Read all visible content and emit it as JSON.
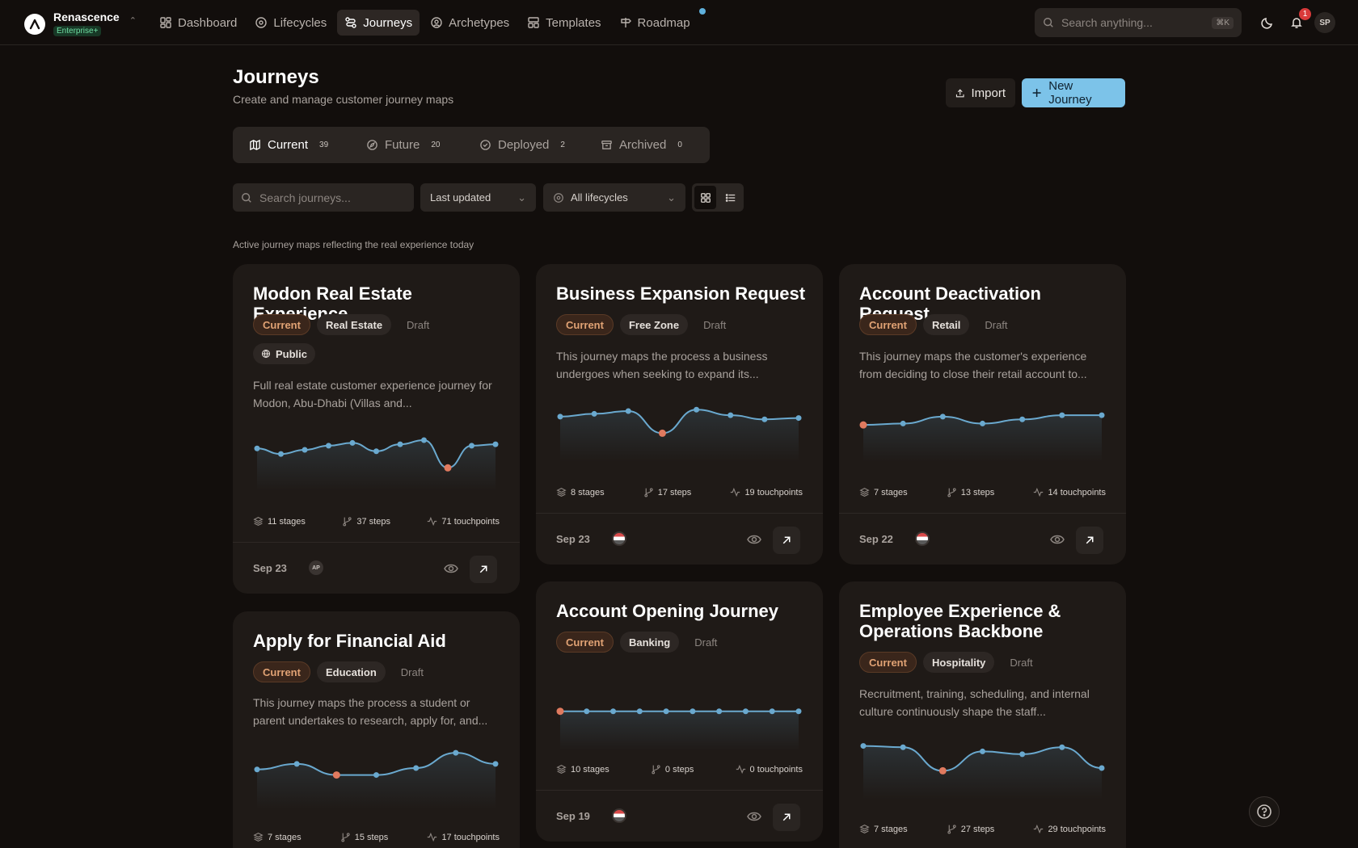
{
  "brand": {
    "name": "Renascence",
    "plan": "Enterprise+"
  },
  "nav": [
    {
      "label": "Dashboard",
      "icon": "dashboard-icon"
    },
    {
      "label": "Lifecycles",
      "icon": "lifecycle-icon"
    },
    {
      "label": "Journeys",
      "icon": "journey-icon",
      "active": true
    },
    {
      "label": "Archetypes",
      "icon": "user-circle-icon"
    },
    {
      "label": "Templates",
      "icon": "template-icon"
    },
    {
      "label": "Roadmap",
      "icon": "signpost-icon",
      "dot": true
    }
  ],
  "global_search": {
    "placeholder": "Search anything...",
    "shortcut": "⌘K"
  },
  "notifications": {
    "count": "1"
  },
  "user": {
    "initials": "SP"
  },
  "page": {
    "title": "Journeys",
    "subtitle": "Create and manage customer journey maps",
    "import_label": "Import",
    "new_label": "New Journey",
    "section_desc": "Active journey maps reflecting the real experience today"
  },
  "tabs": [
    {
      "label": "Current",
      "count": "39",
      "active": true
    },
    {
      "label": "Future",
      "count": "20"
    },
    {
      "label": "Deployed",
      "count": "2"
    },
    {
      "label": "Archived",
      "count": "0"
    }
  ],
  "filters": {
    "search_placeholder": "Search journeys...",
    "sort": "Last updated",
    "lifecycle": "All lifecycles"
  },
  "colors": {
    "accent": "#7cc3e9",
    "line": "#6aa9cf",
    "low_point": "#e07a5f",
    "current_tag": "#e0a274"
  },
  "cards": [
    {
      "title": "Modon Real Estate Experience",
      "status": "Current",
      "industry": "Real Estate",
      "state": "Draft",
      "visibility": "Public",
      "desc": "Full real estate customer experience journey for Modon, Abu-Dhabi (Villas and...",
      "stages": "11 stages",
      "steps": "37 steps",
      "touchpoints": "71 touchpoints",
      "date": "Sep 23",
      "avatar": "AP",
      "sentiment": [
        3.2,
        2.8,
        3.1,
        3.4,
        3.6,
        3.0,
        3.5,
        3.8,
        1.8,
        3.4,
        3.5
      ],
      "low_index": 8
    },
    {
      "title": "Business Expansion Request",
      "status": "Current",
      "industry": "Free Zone",
      "state": "Draft",
      "desc": "This journey maps the process a business undergoes when seeking to expand its...",
      "stages": "8 stages",
      "steps": "17 steps",
      "touchpoints": "19 touchpoints",
      "date": "Sep 23",
      "avatar": "flag",
      "sentiment": [
        3.4,
        3.6,
        3.8,
        2.2,
        3.9,
        3.5,
        3.2,
        3.3
      ],
      "low_index": 3
    },
    {
      "title": "Account Deactivation Request",
      "status": "Current",
      "industry": "Retail",
      "state": "Draft",
      "desc": "This journey maps the customer's experience from deciding to close their retail account to...",
      "stages": "7 stages",
      "steps": "13 steps",
      "touchpoints": "14 touchpoints",
      "date": "Sep 22",
      "avatar": "flag",
      "sentiment": [
        2.8,
        2.9,
        3.4,
        2.9,
        3.2,
        3.5,
        3.5
      ],
      "low_index": 0
    },
    {
      "title": "Apply for Financial Aid",
      "status": "Current",
      "industry": "Education",
      "state": "Draft",
      "desc": "This journey maps the process a student or parent undertakes to research, apply for, and...",
      "stages": "7 stages",
      "steps": "15 steps",
      "touchpoints": "17 touchpoints"
    },
    {
      "title": "Account Opening Journey",
      "status": "Current",
      "industry": "Banking",
      "state": "Draft",
      "stages": "10 stages",
      "steps": "0 steps",
      "touchpoints": "0 touchpoints",
      "date": "Sep 19",
      "avatar": "flag"
    },
    {
      "title": "Employee Experience & Operations Backbone",
      "status": "Current",
      "industry": "Hospitality",
      "state": "Draft",
      "desc": "Recruitment, training, scheduling, and internal culture continuously shape the staff...",
      "stages": "7 stages",
      "steps": "27 steps",
      "touchpoints": "29 touchpoints"
    }
  ],
  "sentiment_extra": {
    "aid": {
      "values": [
        3.0,
        3.4,
        2.6,
        2.6,
        3.1,
        4.2,
        3.4
      ],
      "low_index": 2
    },
    "opening": {
      "values": [
        3,
        3,
        3,
        3,
        3,
        3,
        3,
        3,
        3,
        3
      ],
      "low_index": 0
    },
    "employee": {
      "values": [
        4.0,
        3.9,
        2.2,
        3.6,
        3.4,
        3.9,
        2.4
      ],
      "low_index": 2
    }
  }
}
